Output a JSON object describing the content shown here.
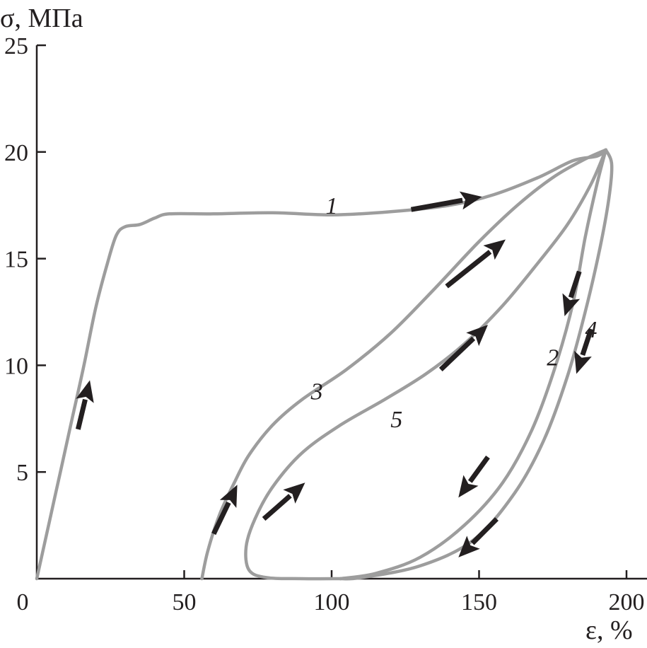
{
  "chart_data": {
    "type": "line",
    "xlabel": "ε, %",
    "ylabel": "σ, МПа",
    "xlim": [
      0,
      210
    ],
    "ylim": [
      0,
      25
    ],
    "x_ticks": [
      "0",
      "50",
      "100",
      "150",
      "200"
    ],
    "y_ticks": [
      "5",
      "10",
      "15",
      "20",
      "25"
    ],
    "grid": false,
    "legend": "none",
    "line_color": "#9d9d9d",
    "arrow_color": "#231f20",
    "series": [
      {
        "name": "1",
        "points": [
          [
            0,
            0
          ],
          [
            4,
            2.5
          ],
          [
            8,
            5
          ],
          [
            12,
            7.5
          ],
          [
            16,
            10
          ],
          [
            20,
            12.7
          ],
          [
            24,
            14.8
          ],
          [
            27,
            16.1
          ],
          [
            30,
            16.5
          ],
          [
            35,
            16.6
          ],
          [
            40,
            16.9
          ],
          [
            45,
            17.1
          ],
          [
            60,
            17.1
          ],
          [
            80,
            17.15
          ],
          [
            100,
            17.05
          ],
          [
            120,
            17.2
          ],
          [
            140,
            17.5
          ],
          [
            155,
            18
          ],
          [
            170,
            18.8
          ],
          [
            182,
            19.6
          ],
          [
            190,
            19.8
          ],
          [
            193,
            20.1
          ]
        ],
        "arrows": [
          [
            [
              14,
              7
            ],
            [
              18,
              9.3
            ]
          ],
          [
            [
              127,
              17.3
            ],
            [
              151,
              17.9
            ]
          ]
        ]
      },
      {
        "name": "2",
        "points": [
          [
            193,
            20.1
          ],
          [
            190,
            18.5
          ],
          [
            186,
            16
          ],
          [
            182,
            13
          ],
          [
            176,
            10
          ],
          [
            168,
            7
          ],
          [
            158,
            4.5
          ],
          [
            145,
            2.5
          ],
          [
            130,
            1
          ],
          [
            115,
            0.25
          ],
          [
            103,
            0
          ]
        ],
        "arrows": [
          [
            [
              184,
              14.4
            ],
            [
              179,
              12.3
            ]
          ],
          [
            [
              153,
              5.7
            ],
            [
              143,
              3.8
            ]
          ]
        ]
      },
      {
        "name": "3",
        "points": [
          [
            56,
            0
          ],
          [
            58,
            1.3
          ],
          [
            62,
            3
          ],
          [
            67,
            4.5
          ],
          [
            72,
            5.8
          ],
          [
            80,
            7.2
          ],
          [
            90,
            8.4
          ],
          [
            105,
            9.8
          ],
          [
            120,
            11.5
          ],
          [
            135,
            13.6
          ],
          [
            150,
            15.8
          ],
          [
            163,
            17.5
          ],
          [
            175,
            18.8
          ],
          [
            185,
            19.6
          ],
          [
            193,
            20.1
          ]
        ],
        "arrows": [
          [
            [
              60,
              2.1
            ],
            [
              68,
              4.4
            ]
          ],
          [
            [
              139,
              13.7
            ],
            [
              159,
              15.9
            ]
          ]
        ]
      },
      {
        "name": "4",
        "points": [
          [
            193,
            20.1
          ],
          [
            195,
            19.4
          ],
          [
            194,
            17.8
          ],
          [
            191,
            15.5
          ],
          [
            186,
            12.5
          ],
          [
            180,
            9.5
          ],
          [
            172,
            6.5
          ],
          [
            162,
            4
          ],
          [
            148,
            1.8
          ],
          [
            130,
            0.6
          ],
          [
            110,
            0.05
          ],
          [
            103,
            0
          ]
        ],
        "arrows": [
          [
            [
              188,
              11.7
            ],
            [
              183,
              9.6
            ]
          ],
          [
            [
              156,
              2.8
            ],
            [
              143,
              1
            ]
          ]
        ]
      },
      {
        "name": "5",
        "points": [
          [
            103,
            0
          ],
          [
            90,
            0
          ],
          [
            78,
            0.05
          ],
          [
            72,
            0.4
          ],
          [
            71,
            1.5
          ],
          [
            74,
            2.8
          ],
          [
            80,
            4.3
          ],
          [
            90,
            5.9
          ],
          [
            103,
            7.2
          ],
          [
            118,
            8.4
          ],
          [
            132,
            9.6
          ],
          [
            145,
            11
          ],
          [
            158,
            12.8
          ],
          [
            170,
            14.8
          ],
          [
            180,
            16.6
          ],
          [
            188,
            18.5
          ],
          [
            193,
            20.1
          ]
        ],
        "arrows": [
          [
            [
              77,
              2.8
            ],
            [
              91,
              4.5
            ]
          ],
          [
            [
              137,
              9.8
            ],
            [
              153,
              11.9
            ]
          ]
        ]
      }
    ],
    "annotations": [
      {
        "text": "1",
        "x": 100,
        "y": 17.5
      },
      {
        "text": "2",
        "x": 175,
        "y": 10.4
      },
      {
        "text": "3",
        "x": 95,
        "y": 8.8
      },
      {
        "text": "4",
        "x": 188,
        "y": 11.7
      },
      {
        "text": "5",
        "x": 122,
        "y": 7.5
      }
    ]
  }
}
